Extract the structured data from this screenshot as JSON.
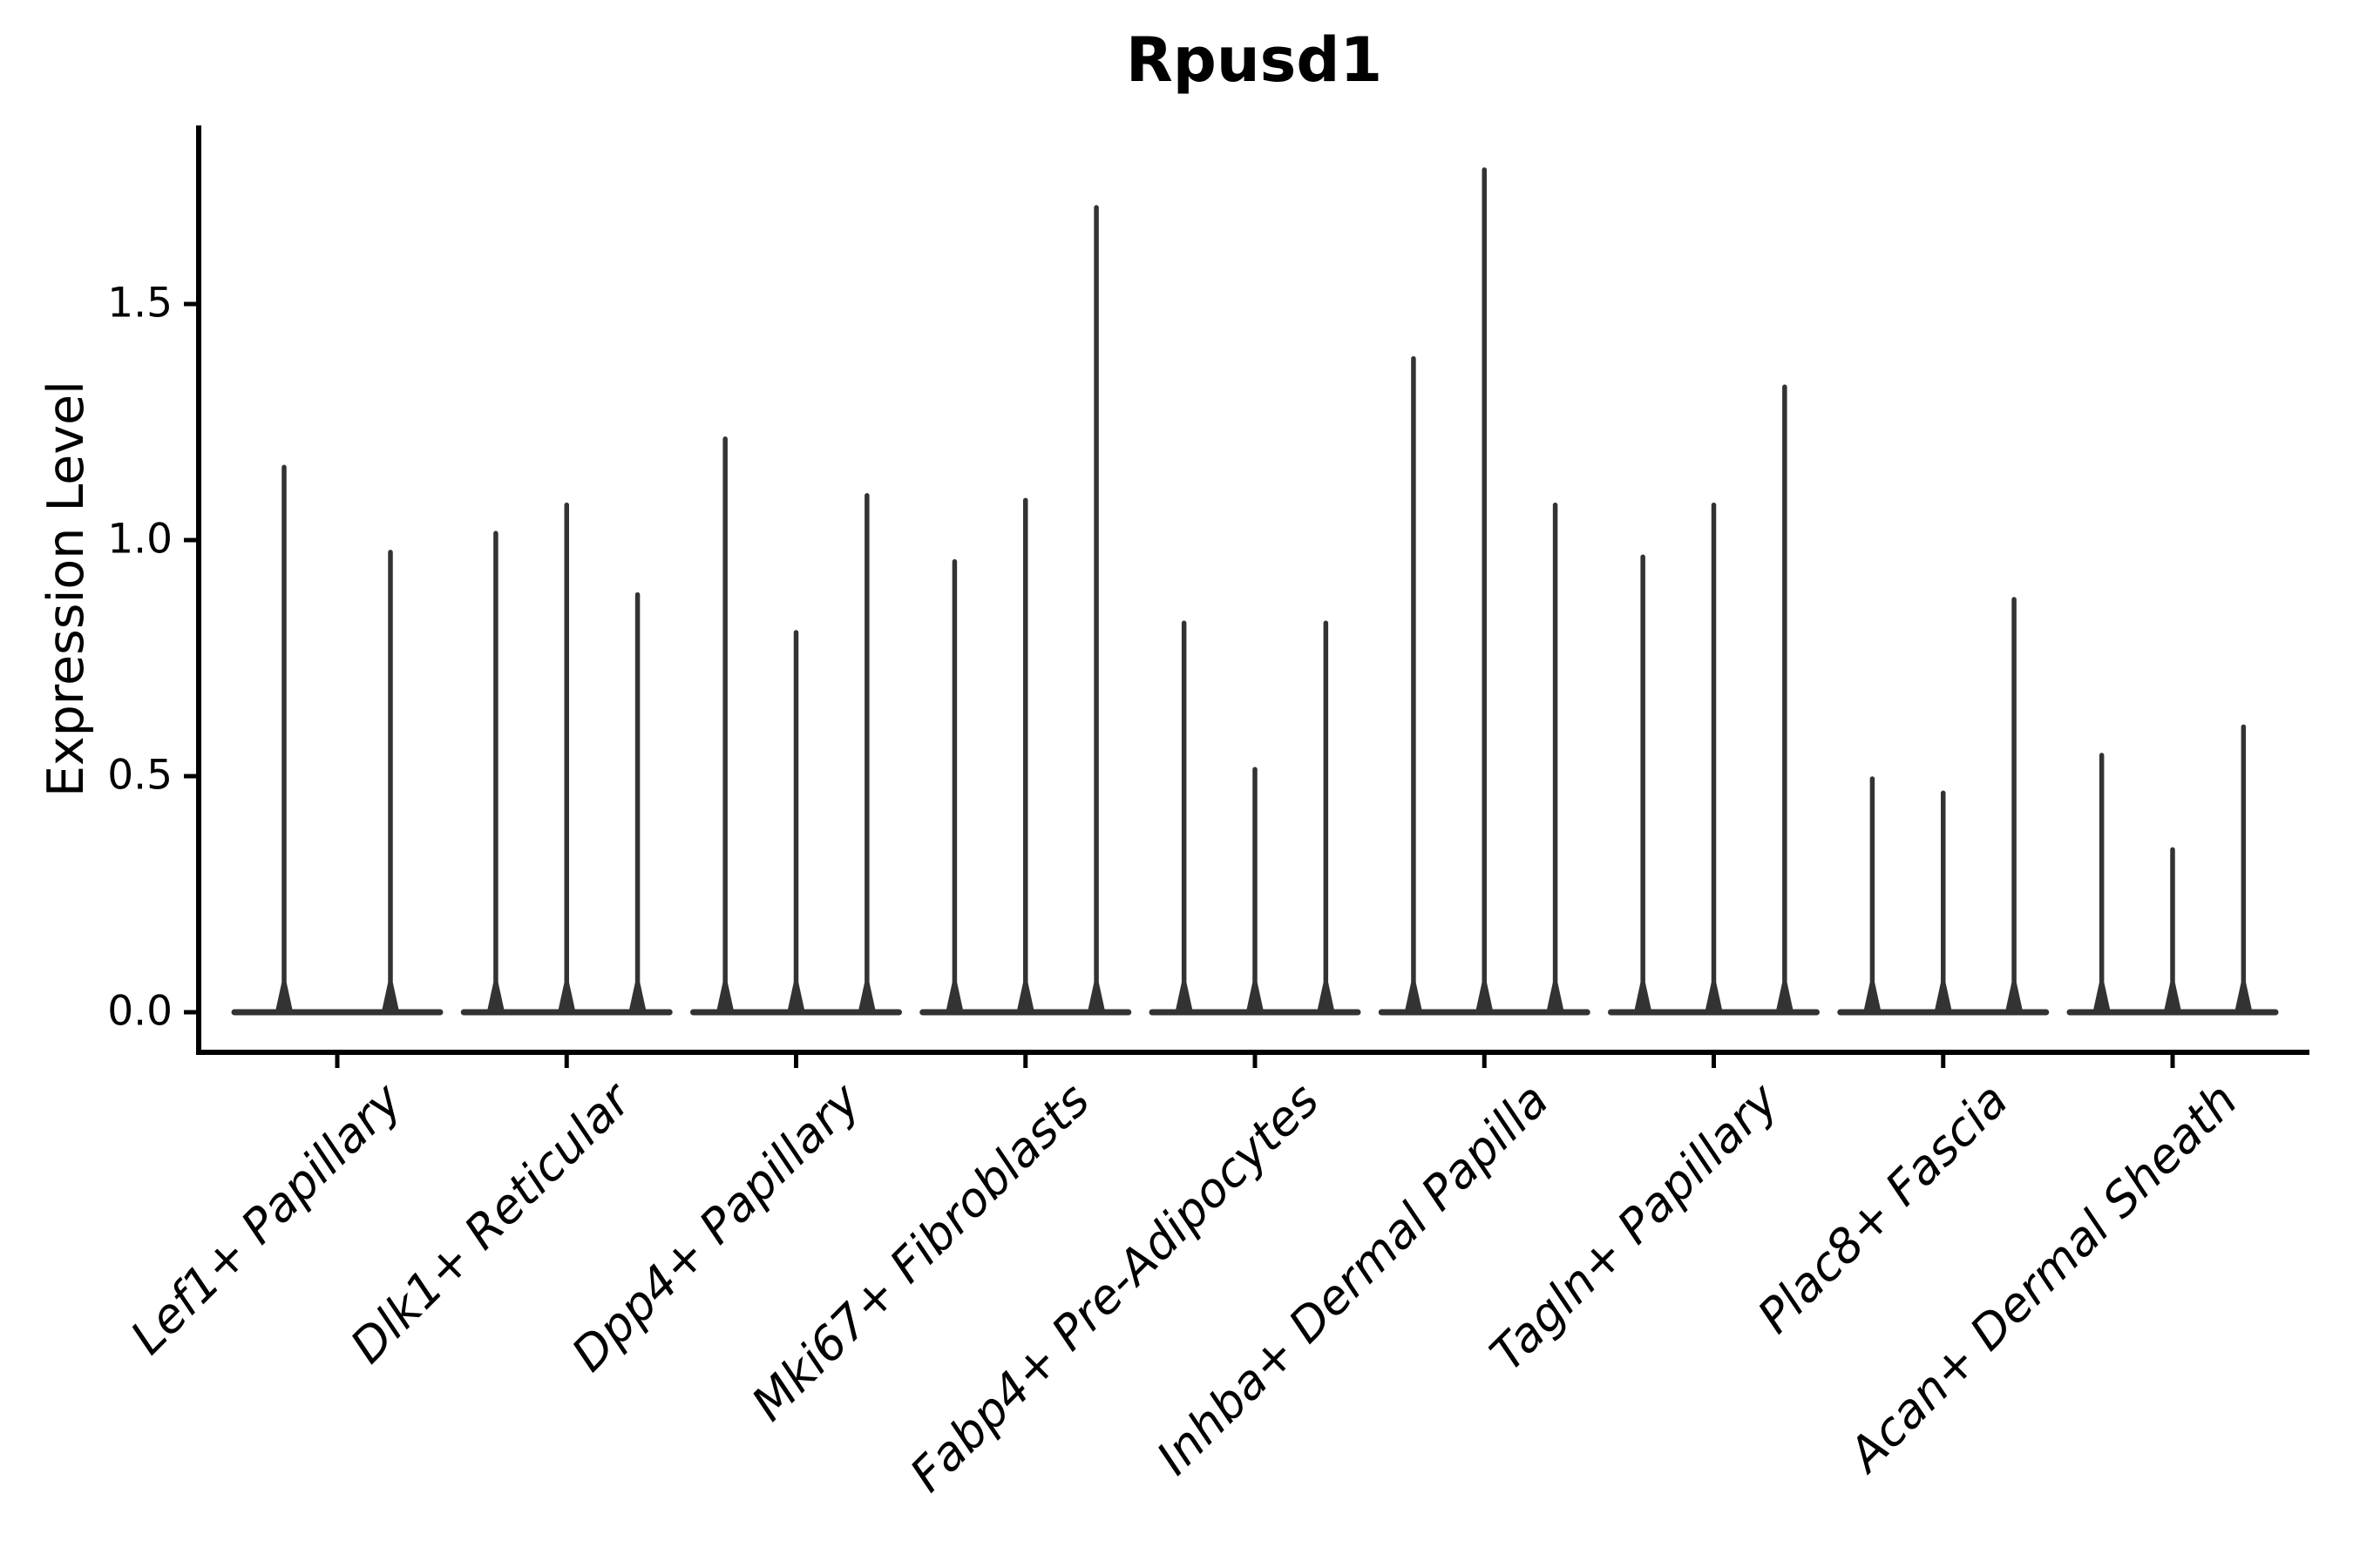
{
  "figure": {
    "background": "#ffffff"
  },
  "chart_data": {
    "type": "violin",
    "title": "Rpusd1",
    "xlabel": "",
    "ylabel": "Expression Level",
    "yticks": [
      0.0,
      0.5,
      1.0,
      1.5
    ],
    "ylim": [
      -0.09,
      1.88
    ],
    "grid": false,
    "legend_position": "none",
    "axis_color": "#000000",
    "violin_color": "#333333",
    "baseline_value": 0.0,
    "groups": [
      {
        "category": "Lef1+ Papillary",
        "spike_maxima": [
          1.16,
          0.98
        ]
      },
      {
        "category": "Dlk1+ Reticular",
        "spike_maxima": [
          1.02,
          1.08,
          0.89
        ]
      },
      {
        "category": "Dpp4+ Papillary",
        "spike_maxima": [
          1.22,
          0.81,
          1.1
        ]
      },
      {
        "category": "Mki67+ Fibroblasts",
        "spike_maxima": [
          0.96,
          1.09,
          1.71
        ]
      },
      {
        "category": "Fabp4+ Pre-Adipocytes",
        "spike_maxima": [
          0.83,
          0.52,
          0.83
        ]
      },
      {
        "category": "Inhba+ Dermal Papilla",
        "spike_maxima": [
          1.39,
          1.79,
          1.08
        ]
      },
      {
        "category": "Tagln+ Papillary",
        "spike_maxima": [
          0.97,
          1.08,
          1.33
        ]
      },
      {
        "category": "Plac8+ Fascia",
        "spike_maxima": [
          0.5,
          0.47,
          0.88
        ]
      },
      {
        "category": "Acan+ Dermal Sheath",
        "spike_maxima": [
          0.55,
          0.35,
          0.61
        ]
      }
    ]
  }
}
